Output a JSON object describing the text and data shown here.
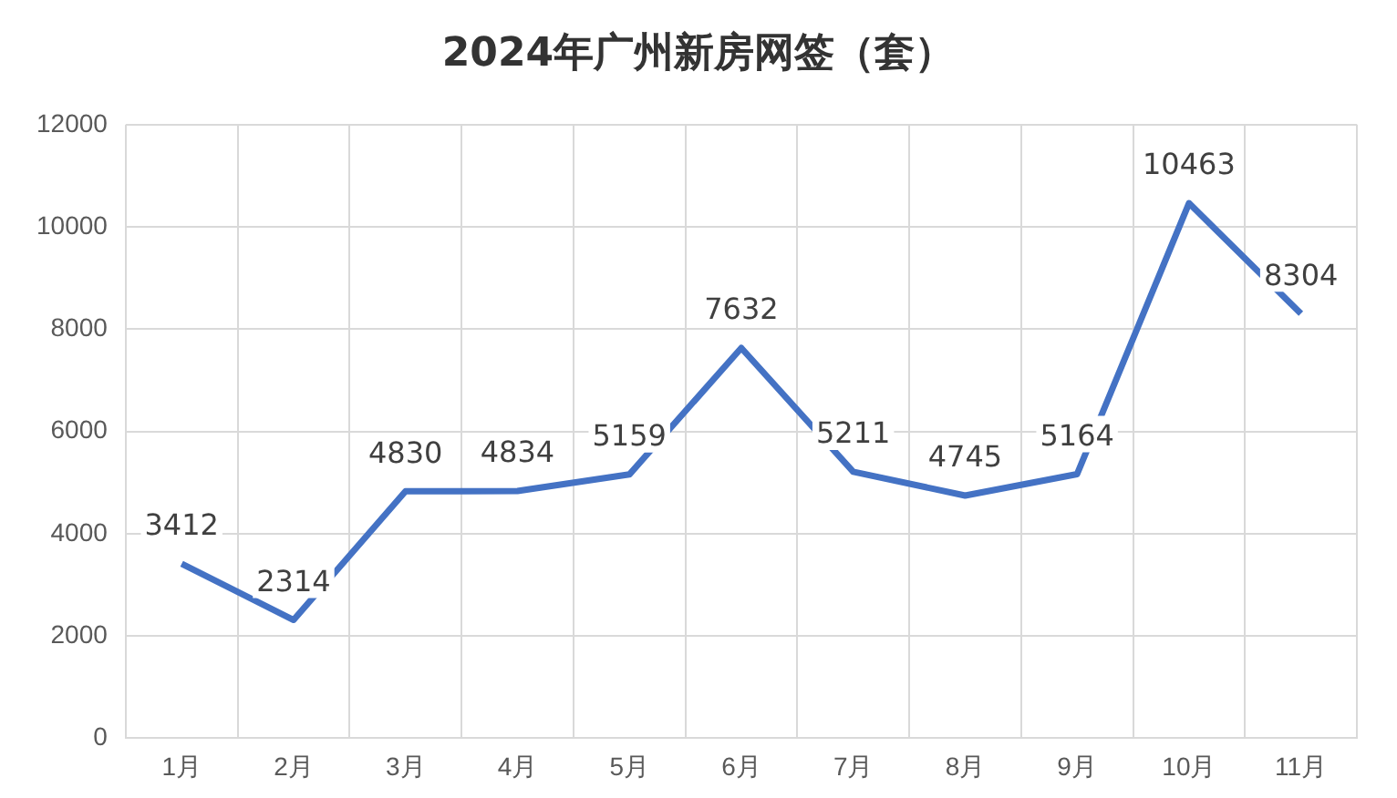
{
  "chart_data": {
    "type": "line",
    "title": "2024年广州新房网签（套）",
    "categories": [
      "1月",
      "2月",
      "3月",
      "4月",
      "5月",
      "6月",
      "7月",
      "8月",
      "9月",
      "10月",
      "11月"
    ],
    "series": [
      {
        "color": "#4472c4",
        "values": [
          3412,
          2314,
          4830,
          4834,
          5159,
          7632,
          5211,
          4745,
          5164,
          10463,
          8304
        ]
      }
    ],
    "ylim": [
      0,
      12000
    ],
    "yticks": [
      0,
      2000,
      4000,
      6000,
      8000,
      10000,
      12000
    ],
    "grid": true,
    "legend": false,
    "marker": "none",
    "line_style": "solid",
    "data_labels": true
  }
}
